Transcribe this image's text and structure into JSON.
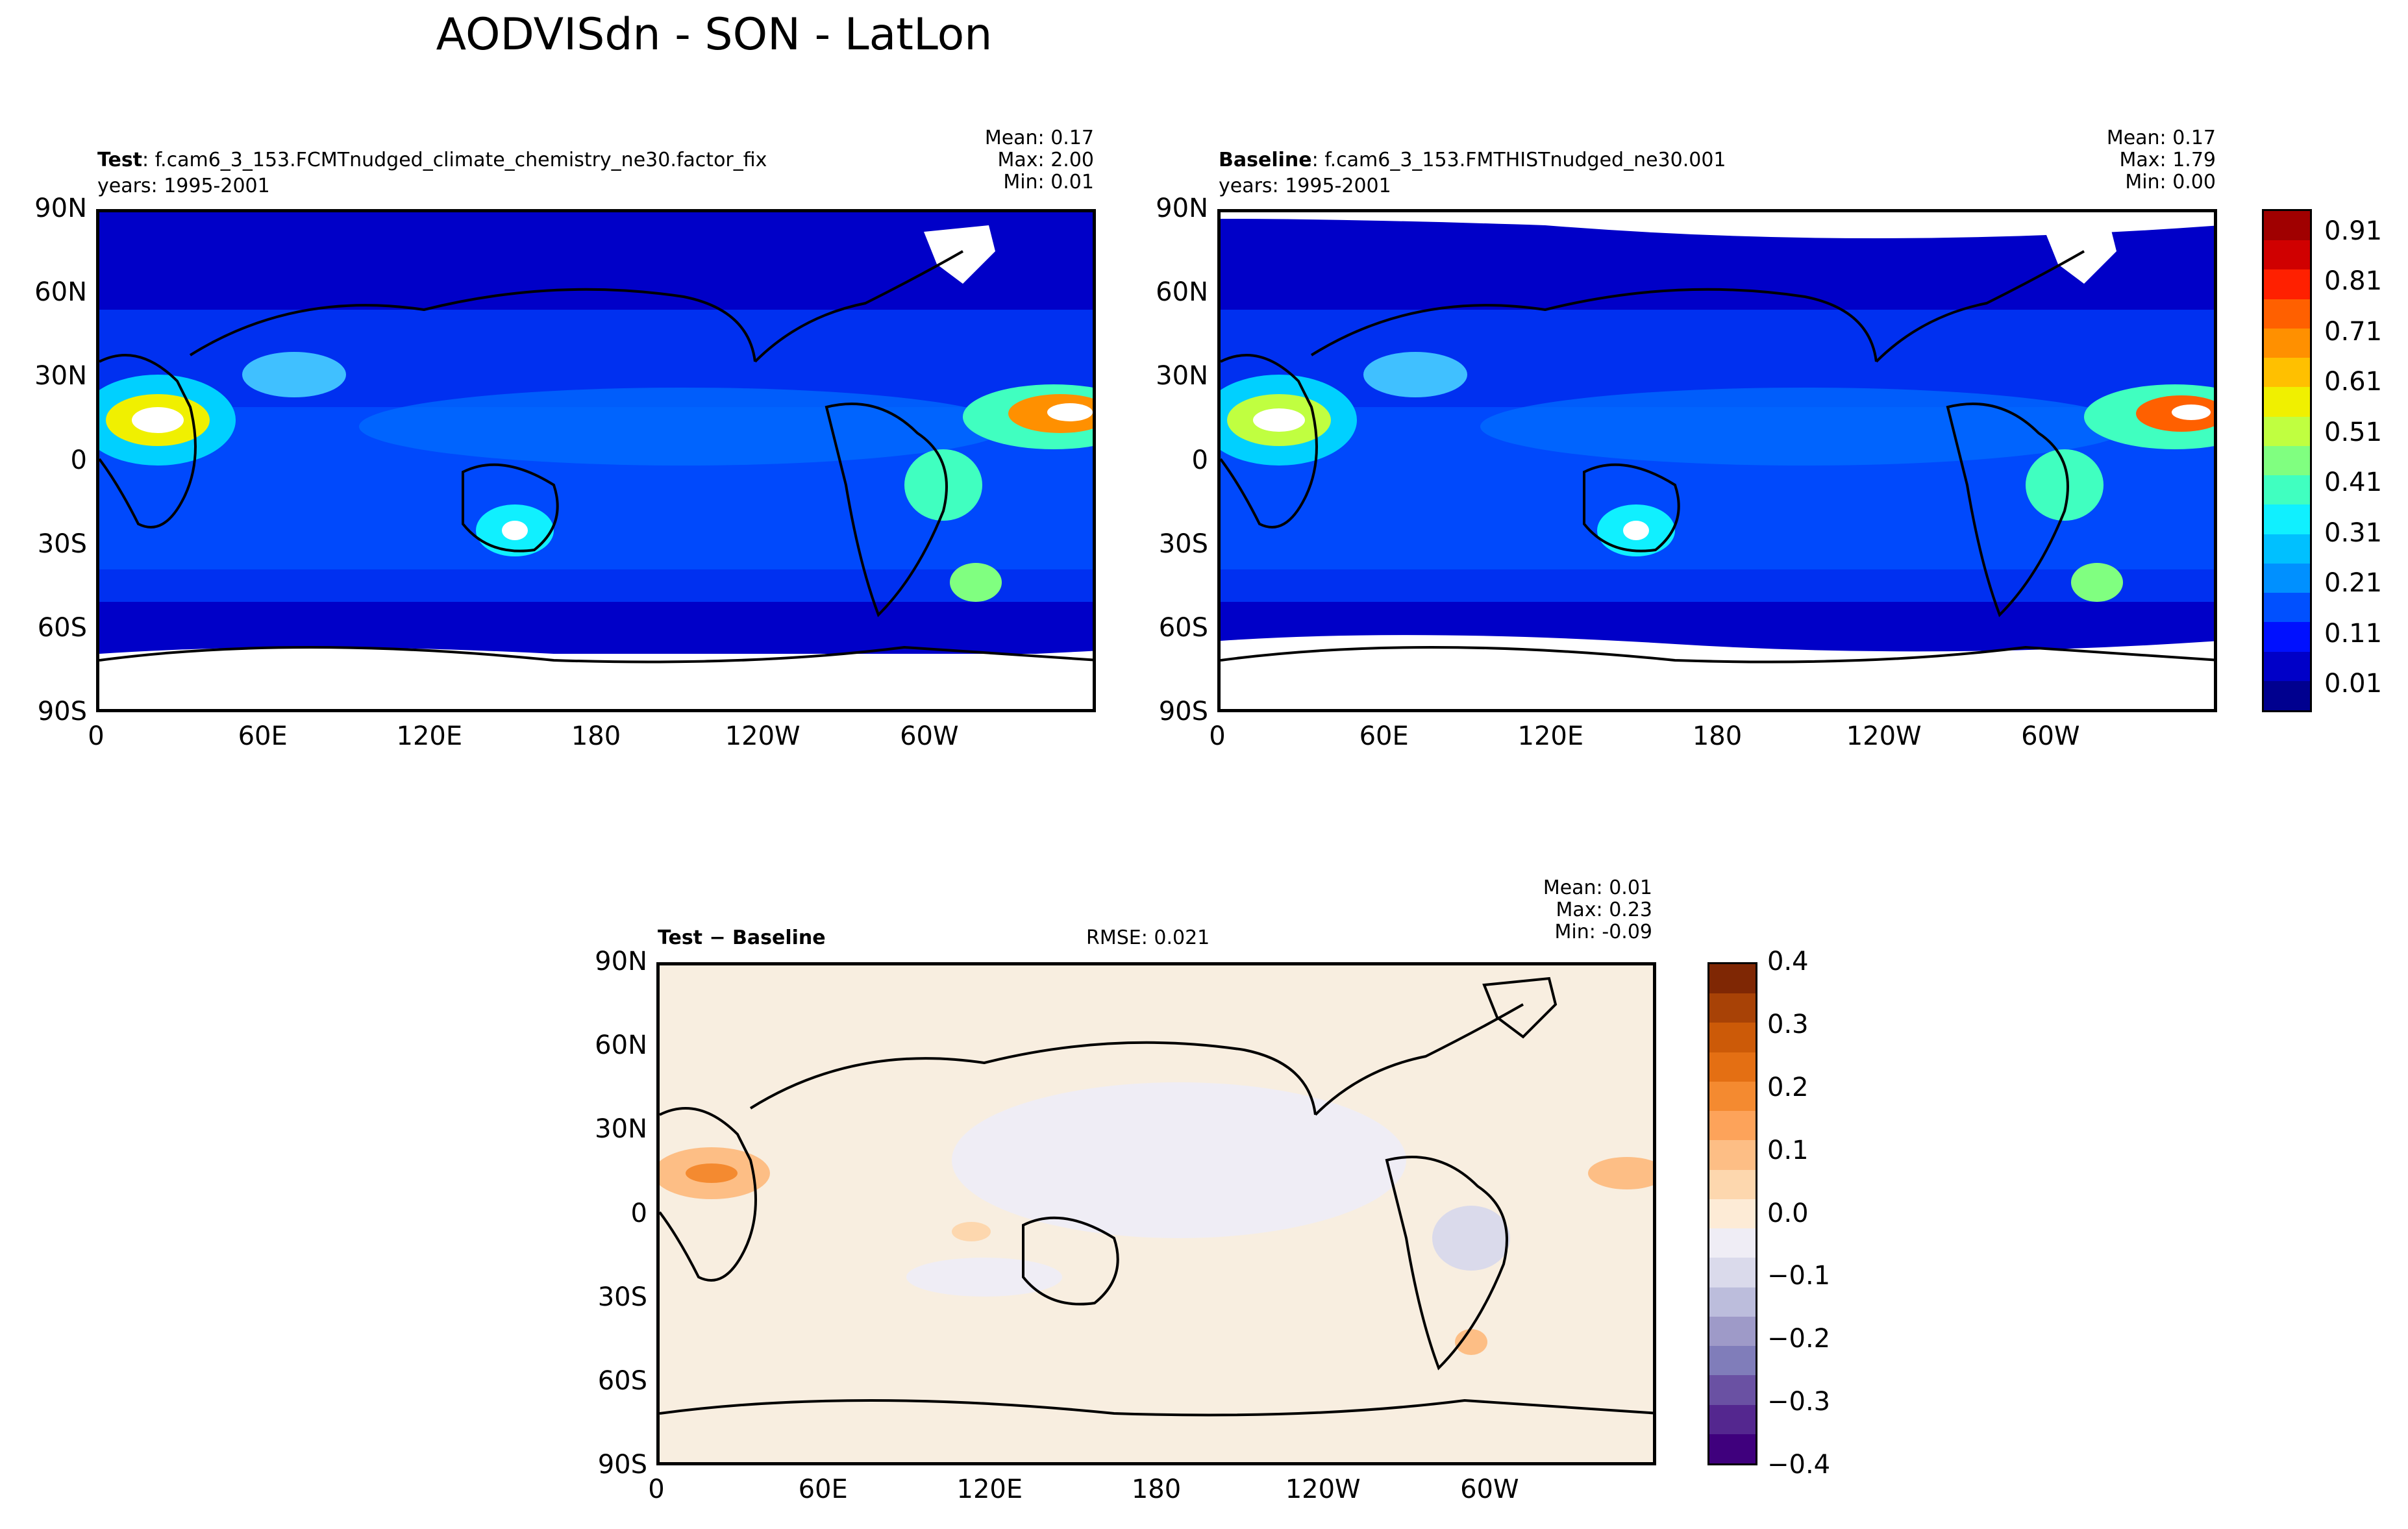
{
  "figure": {
    "title": "AODVISdn - SON - LatLon"
  },
  "panels": {
    "test": {
      "label_bold": "Test",
      "label_rest": ": f.cam6_3_153.FCMTnudged_climate_chemistry_ne30.factor_fix",
      "years": "years: 1995-2001",
      "stats": {
        "mean": "Mean:  0.17",
        "max": "Max:  2.00",
        "min": "Min:  0.01"
      },
      "mean_value": 0.17,
      "max_value": 2.0,
      "min_value": 0.01
    },
    "baseline": {
      "label_bold": "Baseline",
      "label_rest": ": f.cam6_3_153.FMTHISTnudged_ne30.001",
      "years": "years: 1995-2001",
      "stats": {
        "mean": "Mean:  0.17",
        "max": "Max:  1.79",
        "min": "Min:  0.00"
      },
      "mean_value": 0.17,
      "max_value": 1.79,
      "min_value": 0.0
    },
    "diff": {
      "label": "Test − Baseline",
      "rmse": "RMSE: 0.021",
      "rmse_value": 0.021,
      "stats": {
        "mean": "Mean:  0.01",
        "max": "Max:  0.23",
        "min": "Min: -0.09"
      },
      "mean_value": 0.01,
      "max_value": 0.23,
      "min_value": -0.09
    }
  },
  "axes": {
    "lat_ticks": [
      "90N",
      "60N",
      "30N",
      "0",
      "30S",
      "60S",
      "90S"
    ],
    "lon_ticks": [
      "0",
      "60E",
      "120E",
      "180",
      "120W",
      "60W"
    ]
  },
  "colorbars": {
    "aod": {
      "ticks": [
        "0.91",
        "0.81",
        "0.71",
        "0.61",
        "0.51",
        "0.41",
        "0.31",
        "0.21",
        "0.11",
        "0.01"
      ],
      "colors": [
        "#00008f",
        "#0000c8",
        "#0010ff",
        "#0050ff",
        "#0090ff",
        "#00c0ff",
        "#10f0ff",
        "#40ffc0",
        "#80ff80",
        "#c0ff40",
        "#f0f000",
        "#ffc000",
        "#ff9000",
        "#ff6000",
        "#ff2000",
        "#d00000",
        "#a00000"
      ]
    },
    "diff": {
      "ticks": [
        "0.4",
        "0.3",
        "0.2",
        "0.1",
        "0.0",
        "−0.1",
        "−0.2",
        "−0.3",
        "−0.4"
      ],
      "colors": [
        "#3f007d",
        "#54278f",
        "#6a51a3",
        "#807dba",
        "#9e9ac8",
        "#bcbddc",
        "#dadaeb",
        "#efedf5",
        "#fdebd6",
        "#fdd7ae",
        "#fdbe85",
        "#fda35a",
        "#f48a30",
        "#e46f13",
        "#cc5a08",
        "#a84206",
        "#7f2704"
      ]
    }
  },
  "colors": {
    "ocean_deep": "#0000c8",
    "ocean_mid": "#0040ff",
    "dust_yellow": "#ffd000",
    "diff_background": "#f8eee0"
  }
}
